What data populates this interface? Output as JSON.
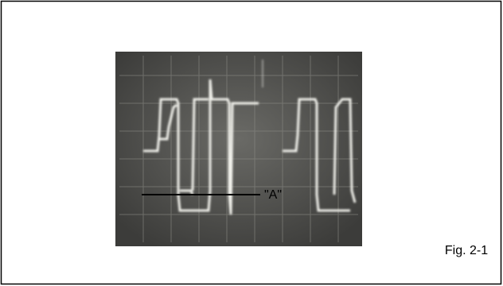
{
  "figure": {
    "annotation": "\"A\"",
    "caption": "Fig. 2-1"
  }
}
